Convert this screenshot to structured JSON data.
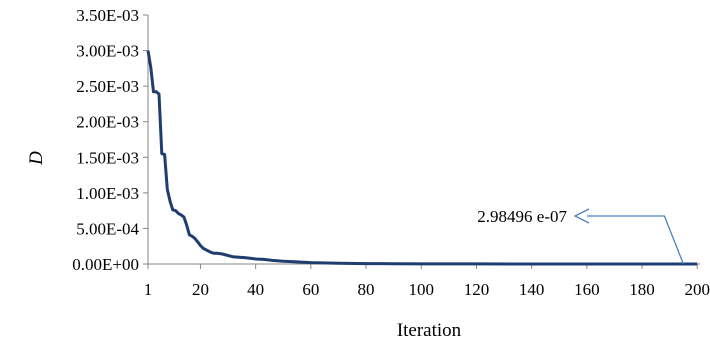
{
  "chart_data": {
    "type": "line",
    "xlabel": "Iteration",
    "ylabel": "D",
    "xlim": [
      1,
      201
    ],
    "ylim": [
      0,
      0.0035
    ],
    "x_ticks": [
      "1",
      "20",
      "40",
      "60",
      "80",
      "100",
      "120",
      "140",
      "160",
      "180",
      "200"
    ],
    "y_ticks": [
      "0.00E+00",
      "5.00E-04",
      "1.00E-03",
      "1.50E-03",
      "2.00E-03",
      "2.50E-03",
      "3.00E-03",
      "3.50E-03"
    ],
    "grid": false,
    "line_color": "#1f3d6e",
    "annotation_color": "#4f81bd",
    "series": [
      {
        "x": [
          1,
          2,
          3,
          4,
          5,
          6,
          7,
          8,
          9,
          10,
          11,
          12,
          13,
          14,
          15,
          16,
          17,
          18,
          19,
          20,
          21,
          22,
          23,
          24,
          25,
          26,
          28,
          30,
          32,
          34,
          36,
          38,
          40,
          43,
          46,
          50,
          55,
          60,
          70,
          80,
          90,
          100,
          120,
          150,
          180,
          200
        ],
        "y": [
          0.003,
          0.00276,
          0.00242,
          0.00242,
          0.00239,
          0.00155,
          0.00154,
          0.00105,
          0.00088,
          0.00076,
          0.00075,
          0.00071,
          0.00069,
          0.00066,
          0.00055,
          0.00041,
          0.00039,
          0.00036,
          0.00031,
          0.00026,
          0.00022,
          0.0002,
          0.00018,
          0.00016,
          0.00015,
          0.00015,
          0.00014,
          0.00012,
          0.0001,
          9.5e-05,
          9e-05,
          8e-05,
          7e-05,
          6.5e-05,
          5e-05,
          4e-05,
          3e-05,
          2e-05,
          1e-05,
          6e-06,
          4e-06,
          2e-06,
          1e-06,
          5e-07,
          3e-07,
          2.98496e-07
        ]
      }
    ],
    "annotation": {
      "text": "2.98496 e-07",
      "x": 195,
      "y": 2.98496e-07
    }
  }
}
